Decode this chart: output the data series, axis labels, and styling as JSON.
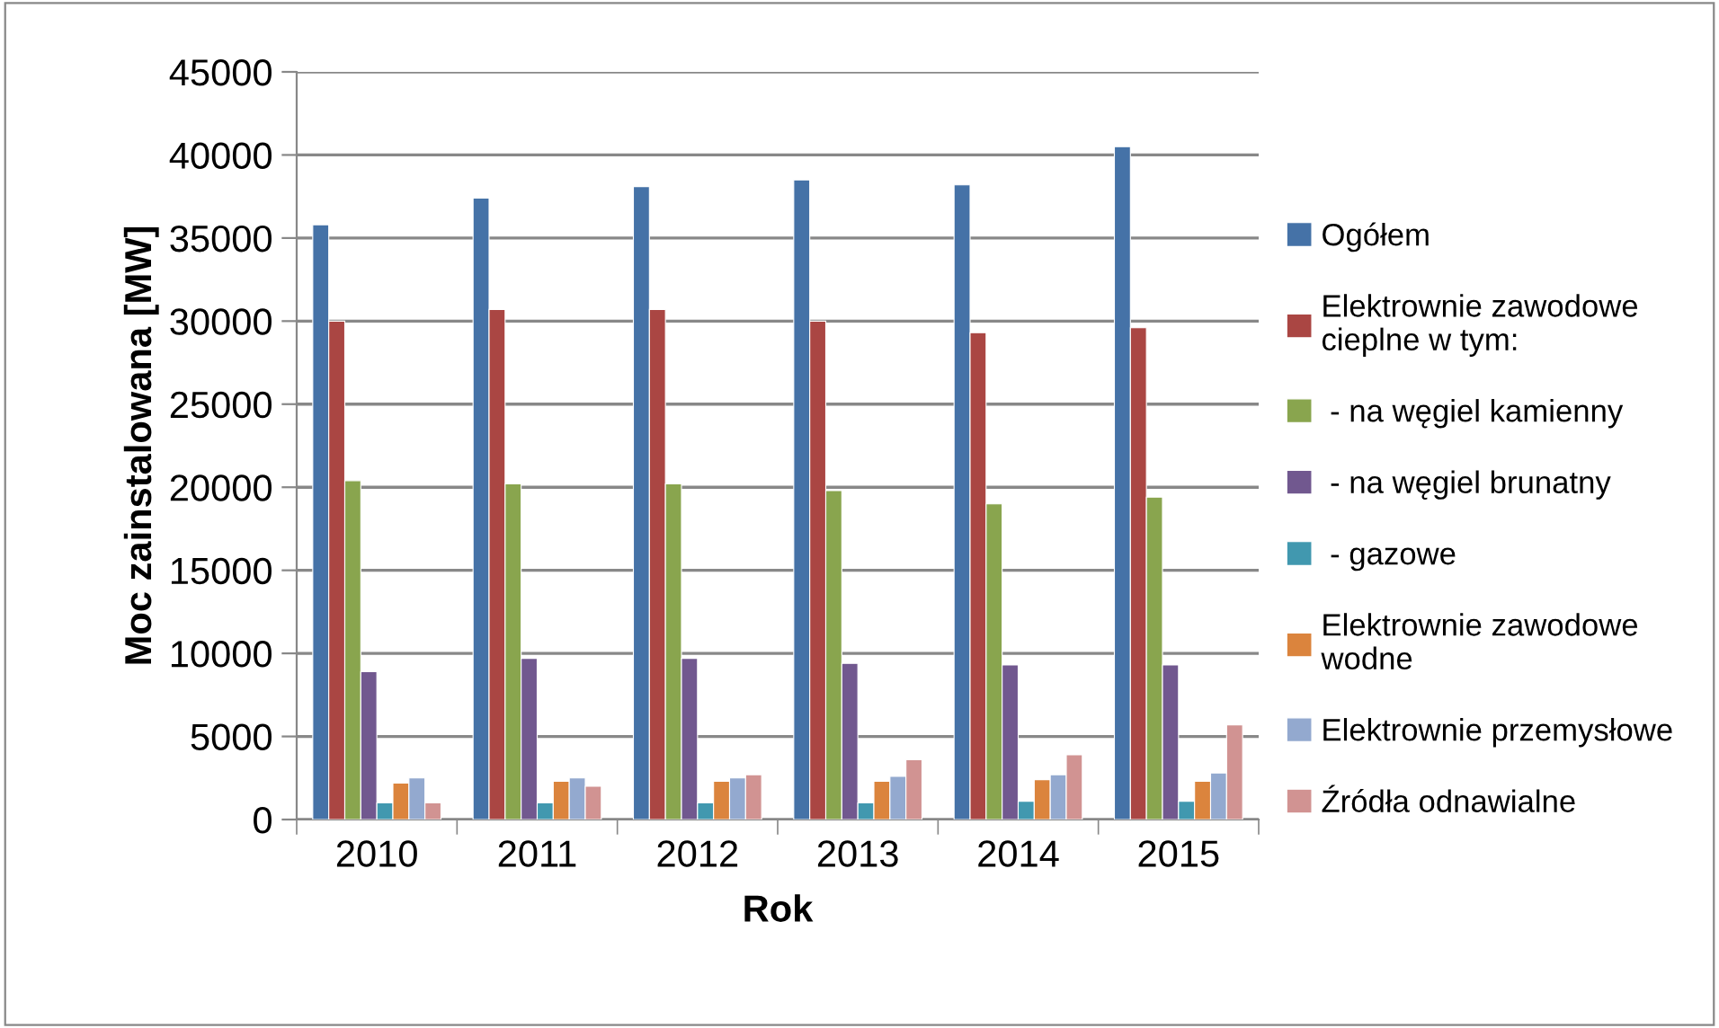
{
  "chart_data": {
    "type": "bar",
    "xlabel": "Rok",
    "ylabel": "Moc zainstalowana [MW]",
    "categories": [
      "2010",
      "2011",
      "2012",
      "2013",
      "2014",
      "2015"
    ],
    "series": [
      {
        "name": "Ogółem",
        "color": "#4572a7",
        "values": [
          35800,
          37400,
          38100,
          38500,
          38200,
          40500
        ]
      },
      {
        "name": "Elektrownie zawodowe\ncieplne w tym:",
        "color": "#aa4643",
        "values": [
          30000,
          30700,
          30700,
          30000,
          29300,
          29600
        ]
      },
      {
        "name": " - na węgiel kamienny",
        "color": "#89a54e",
        "values": [
          20400,
          20200,
          20200,
          19800,
          19000,
          19400
        ]
      },
      {
        "name": " - na węgiel brunatny",
        "color": "#71588f",
        "values": [
          8900,
          9700,
          9700,
          9400,
          9300,
          9300
        ]
      },
      {
        "name": " - gazowe",
        "color": "#4198af",
        "values": [
          1000,
          1000,
          1000,
          1000,
          1100,
          1100
        ]
      },
      {
        "name": "Elektrownie zawodowe\nwodne",
        "color": "#db843d",
        "values": [
          2200,
          2300,
          2300,
          2300,
          2400,
          2300
        ]
      },
      {
        "name": "Elektrownie przemysłowe",
        "color": "#93a9cf",
        "values": [
          2500,
          2500,
          2500,
          2600,
          2700,
          2800
        ]
      },
      {
        "name": "Źródła odnawialne",
        "color": "#d19392",
        "values": [
          1000,
          2000,
          2700,
          3600,
          3900,
          5700
        ]
      }
    ],
    "ylim": [
      0,
      45000
    ],
    "yticks": [
      0,
      5000,
      10000,
      15000,
      20000,
      25000,
      30000,
      35000,
      40000,
      45000
    ],
    "grid": "y",
    "legend": "right"
  }
}
